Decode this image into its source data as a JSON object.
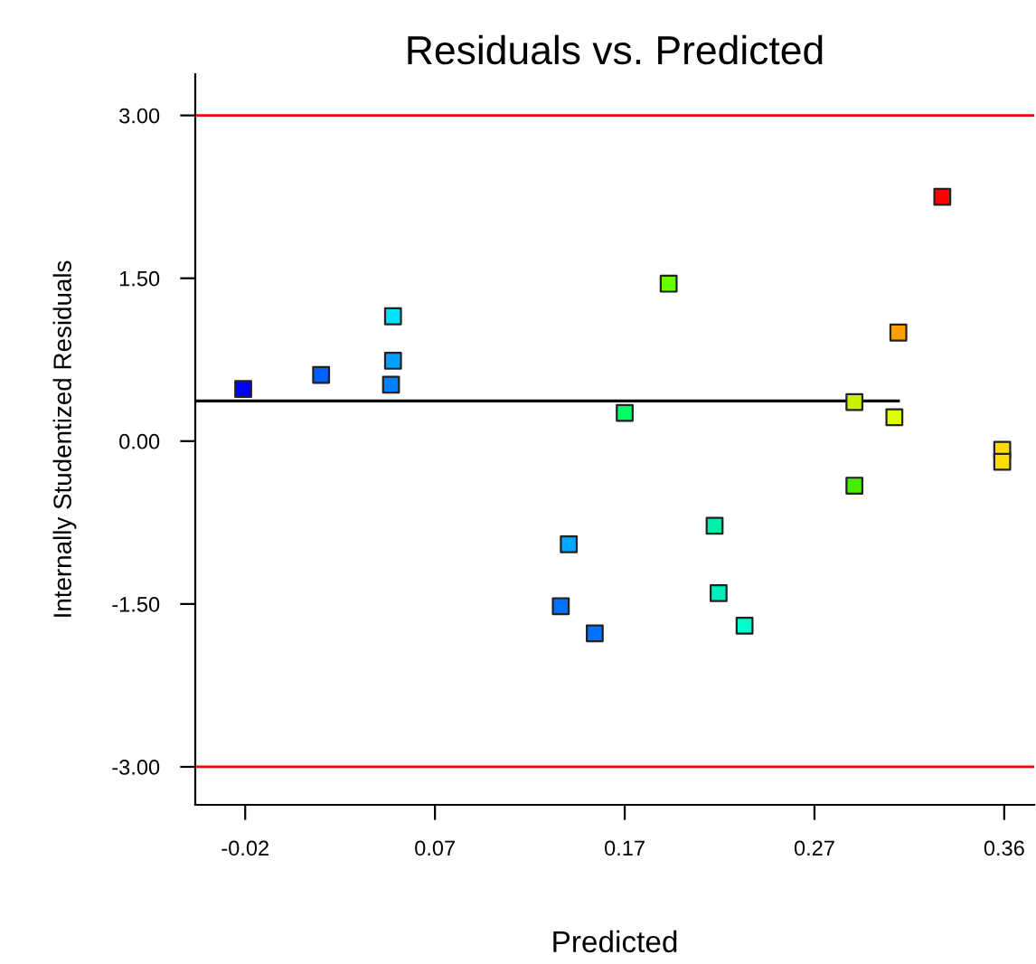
{
  "chart_data": {
    "type": "scatter",
    "title": "Residuals vs. Predicted",
    "xlabel": "Predicted",
    "ylabel": "Internally Studentized Residuals",
    "xlim": [
      -0.045,
      0.375
    ],
    "ylim": [
      -3.35,
      3.38
    ],
    "xticks": [
      {
        "value": -0.02,
        "label": "-0.02"
      },
      {
        "value": 0.075,
        "label": "0.07"
      },
      {
        "value": 0.17,
        "label": "0.17"
      },
      {
        "value": 0.265,
        "label": "0.27"
      },
      {
        "value": 0.36,
        "label": "0.36"
      }
    ],
    "yticks": [
      {
        "value": -3,
        "label": "-3.00"
      },
      {
        "value": -1.5,
        "label": "-1.50"
      },
      {
        "value": 0,
        "label": "0.00"
      },
      {
        "value": 1.5,
        "label": "1.50"
      },
      {
        "value": 3,
        "label": "3.00"
      }
    ],
    "grid": false,
    "series": [
      {
        "marker": "square",
        "x": [
          -0.021,
          0.018,
          0.053,
          0.054,
          0.054,
          0.142,
          0.138,
          0.155,
          0.329,
          0.192,
          0.307,
          0.285,
          0.17,
          0.305,
          0.359,
          0.359,
          0.285,
          0.215,
          0.217,
          0.23
        ],
        "values": [
          0.48,
          0.61,
          0.52,
          0.74,
          1.15,
          -0.95,
          -1.52,
          -1.77,
          2.25,
          1.45,
          1.0,
          0.36,
          0.26,
          0.22,
          -0.08,
          -0.19,
          -0.41,
          -0.78,
          -1.4,
          -1.7
        ],
        "colors": [
          "#0000ff",
          "#0060ff",
          "#0080ff",
          "#00a0ff",
          "#00e0ff",
          "#00a8ff",
          "#0070ff",
          "#0070ff",
          "#ff0000",
          "#66ff00",
          "#ffa000",
          "#ccee00",
          "#00ff66",
          "#ddff00",
          "#ffdd00",
          "#ffdd00",
          "#44ee00",
          "#00eeaa",
          "#00eebb",
          "#00ffcc"
        ]
      },
      {
        "type": "line",
        "x": [
          -0.045,
          0.307
        ],
        "values": [
          0.37,
          0.37
        ],
        "color": "#000000"
      }
    ],
    "ref_lines": [
      {
        "axis": "y",
        "value": 3,
        "color": "#ff0000"
      },
      {
        "axis": "y",
        "value": -3,
        "color": "#ff0000"
      }
    ]
  }
}
